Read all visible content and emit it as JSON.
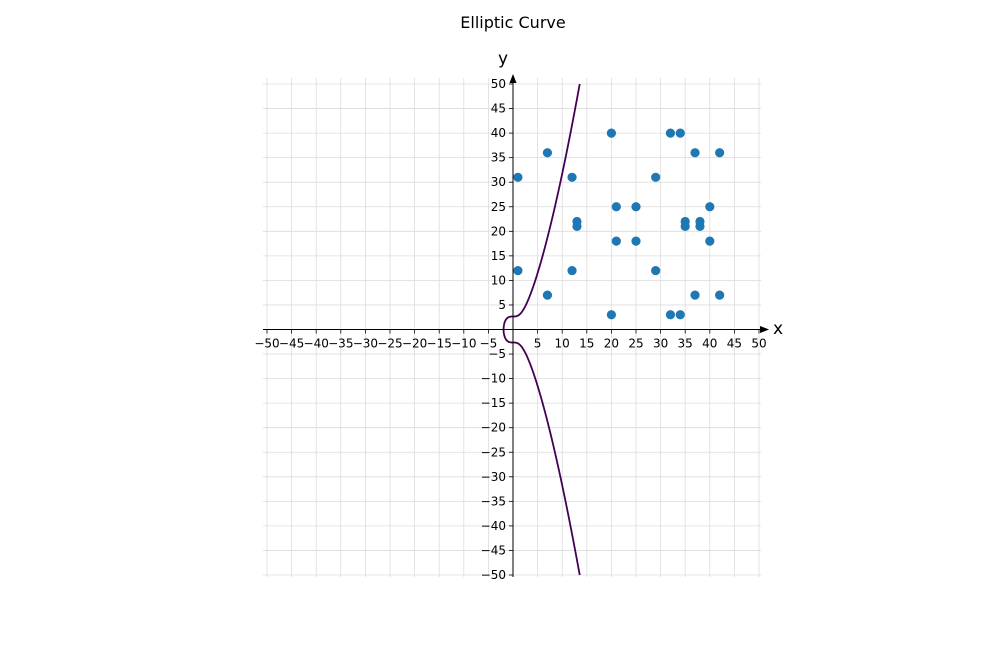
{
  "chart_data": {
    "type": "scatter",
    "title": "Elliptic Curve",
    "xlabel": "x",
    "ylabel": "y",
    "xlim": [
      -50,
      50
    ],
    "ylim": [
      -50,
      50
    ],
    "grid": true,
    "x_ticks": [
      -50,
      -45,
      -40,
      -35,
      -30,
      -25,
      -20,
      -15,
      -10,
      -5,
      5,
      10,
      15,
      20,
      25,
      30,
      35,
      40,
      45,
      50
    ],
    "y_ticks": [
      -50,
      -45,
      -40,
      -35,
      -30,
      -25,
      -20,
      -15,
      -10,
      -5,
      5,
      10,
      15,
      20,
      25,
      30,
      35,
      40,
      45,
      50
    ],
    "curve": {
      "equation": "y^2 = x^3 + 7",
      "color": "#440154"
    },
    "points": {
      "color": "#1f77b4",
      "data": [
        [
          1,
          12
        ],
        [
          1,
          31
        ],
        [
          7,
          7
        ],
        [
          7,
          36
        ],
        [
          12,
          12
        ],
        [
          12,
          31
        ],
        [
          13,
          21
        ],
        [
          13,
          22
        ],
        [
          20,
          3
        ],
        [
          20,
          40
        ],
        [
          21,
          18
        ],
        [
          21,
          25
        ],
        [
          25,
          18
        ],
        [
          25,
          25
        ],
        [
          29,
          12
        ],
        [
          29,
          31
        ],
        [
          32,
          3
        ],
        [
          32,
          40
        ],
        [
          34,
          3
        ],
        [
          34,
          40
        ],
        [
          35,
          21
        ],
        [
          35,
          22
        ],
        [
          37,
          7
        ],
        [
          37,
          36
        ],
        [
          38,
          21
        ],
        [
          38,
          22
        ],
        [
          40,
          18
        ],
        [
          40,
          25
        ],
        [
          42,
          7
        ],
        [
          42,
          36
        ]
      ]
    }
  }
}
